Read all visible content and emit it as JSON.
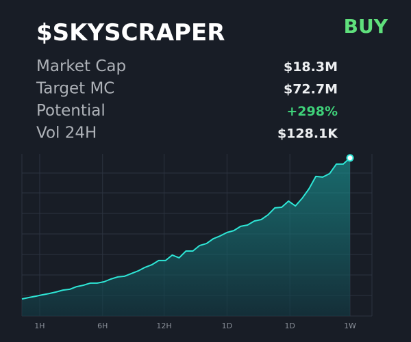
{
  "header": {
    "title": "$SKYSCRAPER",
    "action": "BUY"
  },
  "stats": [
    {
      "label": "Market Cap",
      "value": "$18.3M"
    },
    {
      "label": "Target MC",
      "value": "$72.7M"
    },
    {
      "label": "Potential",
      "value": "+298%"
    },
    {
      "label": "Vol 24H",
      "value": "$128.1K"
    }
  ],
  "chart_data": {
    "type": "line",
    "color": "#2ee6d6",
    "grid": true,
    "xlim": [
      0,
      48
    ],
    "ylim": [
      0,
      100
    ],
    "xticks": [
      {
        "value": 2.6,
        "label": "1H"
      },
      {
        "value": 11.8,
        "label": "6H"
      },
      {
        "value": 20.8,
        "label": "12H"
      },
      {
        "value": 30,
        "label": "1D"
      },
      {
        "value": 39.2,
        "label": "1D"
      },
      {
        "value": 48,
        "label": "1W"
      }
    ],
    "values": [
      10.5,
      11.4,
      12.2,
      13.1,
      13.9,
      14.8,
      16.0,
      16.5,
      18.1,
      19.0,
      20.3,
      20.3,
      21.1,
      22.8,
      24.1,
      24.5,
      26.2,
      27.8,
      30.0,
      31.6,
      34.2,
      34.2,
      37.6,
      35.9,
      40.1,
      40.1,
      43.5,
      44.7,
      47.7,
      49.4,
      51.5,
      52.7,
      55.3,
      56.1,
      58.6,
      59.5,
      62.4,
      66.7,
      67.1,
      70.9,
      67.9,
      72.6,
      78.5,
      86.1,
      85.7,
      87.8,
      93.7,
      93.7,
      97.5
    ]
  }
}
